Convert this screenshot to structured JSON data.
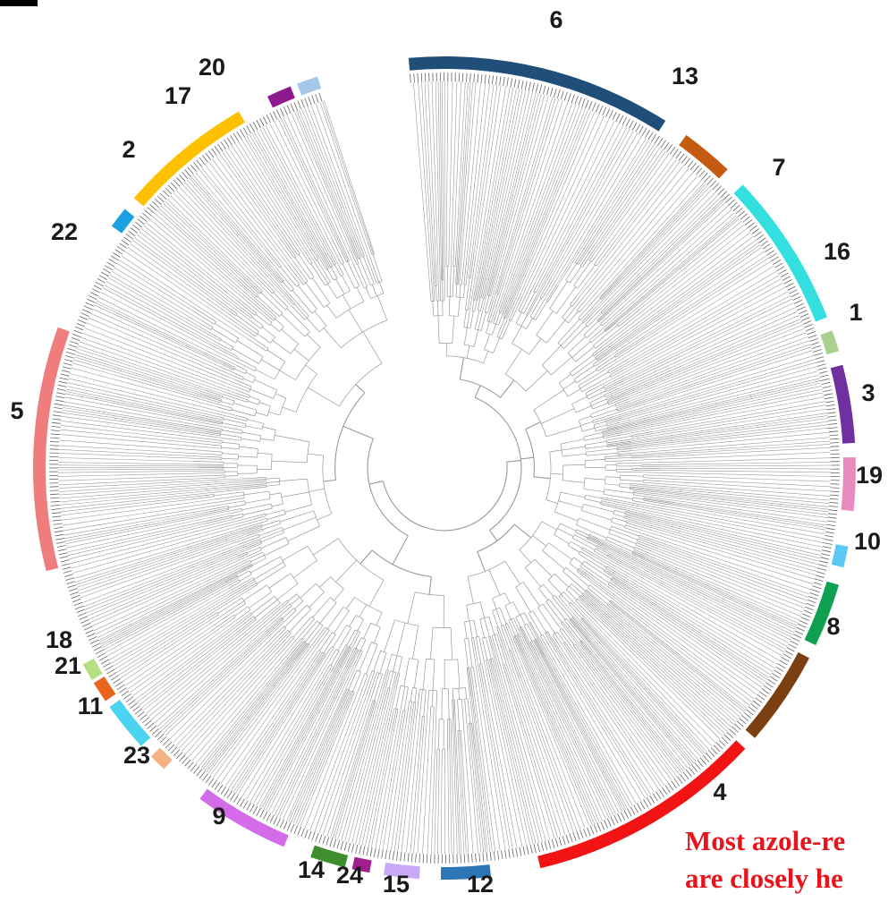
{
  "tree": {
    "branch_color": "#9a9a9a",
    "tip_color": "#666666"
  },
  "clades": [
    {
      "label": "6",
      "color": "#1f4e79"
    },
    {
      "label": "13",
      "color": "#c55a11"
    },
    {
      "label": "7",
      "color": "#34dfe0"
    },
    {
      "label": "16",
      "color": "#a9d18e"
    },
    {
      "label": "1",
      "color": "#7030a0"
    },
    {
      "label": "3",
      "color": "#e78bbf"
    },
    {
      "label": "19",
      "color": "#5bc8f5"
    },
    {
      "label": "10",
      "color": "#10a150"
    },
    {
      "label": "8",
      "color": "#7b3f12"
    },
    {
      "label": "4",
      "color": "#f21414"
    },
    {
      "label": "12",
      "color": "#2e75b6"
    },
    {
      "label": "15",
      "color": "#c9a9f7"
    },
    {
      "label": "24",
      "color": "#a01f8f"
    },
    {
      "label": "14",
      "color": "#3e8e2e"
    },
    {
      "label": "9",
      "color": "#d46be8"
    },
    {
      "label": "23",
      "color": "#f4b183"
    },
    {
      "label": "11",
      "color": "#4bd3f2"
    },
    {
      "label": "21",
      "color": "#e9651d"
    },
    {
      "label": "18",
      "color": "#b3e082"
    },
    {
      "label": "5",
      "color": "#ef7d7d"
    },
    {
      "label": "22",
      "color": "#1ba1e2"
    },
    {
      "label": "2",
      "color": "#ffc000"
    },
    {
      "label": "17",
      "color": "#8e1a8e"
    },
    {
      "label": "20",
      "color": "#a6c8e8"
    }
  ],
  "annotation": {
    "line1": "Most azole-re",
    "line2": "are closely he",
    "color": "#e8141b"
  }
}
